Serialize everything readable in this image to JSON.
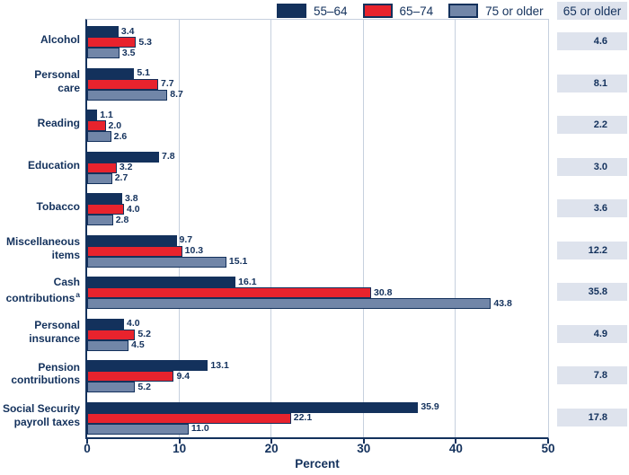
{
  "colors": {
    "navy": "#13315C",
    "red": "#E8232D",
    "slate": "#7186A8",
    "gridline": "#C6D0DE",
    "box_bg": "#DEE3ED"
  },
  "legend": {
    "right_header": "65 or older"
  },
  "chart_data": {
    "type": "bar",
    "orientation": "horizontal",
    "title": "",
    "xlabel": "Percent",
    "xlim": [
      0,
      50
    ],
    "xticks": [
      0,
      10,
      20,
      30,
      40,
      50
    ],
    "grid": true,
    "legend_position": "top",
    "categories": [
      "Alcohol",
      "Personal care",
      "Reading",
      "Education",
      "Tobacco",
      "Miscellaneous items",
      "Cash contributions",
      "Personal insurance",
      "Pension contributions",
      "Social Security payroll taxes"
    ],
    "category_display": [
      {
        "lines": [
          "Alcohol"
        ],
        "sup": ""
      },
      {
        "lines": [
          "Personal",
          "care"
        ],
        "sup": ""
      },
      {
        "lines": [
          "Reading"
        ],
        "sup": ""
      },
      {
        "lines": [
          "Education"
        ],
        "sup": ""
      },
      {
        "lines": [
          "Tobacco"
        ],
        "sup": ""
      },
      {
        "lines": [
          "Miscellaneous",
          "items"
        ],
        "sup": ""
      },
      {
        "lines": [
          "Cash",
          "contributions"
        ],
        "sup": "a"
      },
      {
        "lines": [
          "Personal",
          "insurance"
        ],
        "sup": ""
      },
      {
        "lines": [
          "Pension",
          "contributions"
        ],
        "sup": ""
      },
      {
        "lines": [
          "Social Security",
          "payroll taxes"
        ],
        "sup": ""
      }
    ],
    "series": [
      {
        "name": "55–64",
        "color": "#13315C",
        "values": [
          3.4,
          5.1,
          1.1,
          7.8,
          3.8,
          9.7,
          16.1,
          4.0,
          13.1,
          35.9
        ]
      },
      {
        "name": "65–74",
        "color": "#E8232D",
        "values": [
          5.3,
          7.7,
          2.0,
          3.2,
          4.0,
          10.3,
          30.8,
          5.2,
          9.4,
          22.1
        ]
      },
      {
        "name": "75 or older",
        "color": "#7186A8",
        "values": [
          3.5,
          8.7,
          2.6,
          2.7,
          2.8,
          15.1,
          43.8,
          4.5,
          5.2,
          11.0
        ]
      }
    ],
    "right_column": {
      "header": "65 or older",
      "values": [
        4.6,
        8.1,
        2.2,
        3.0,
        3.6,
        12.2,
        35.8,
        4.9,
        7.8,
        17.8
      ]
    }
  }
}
